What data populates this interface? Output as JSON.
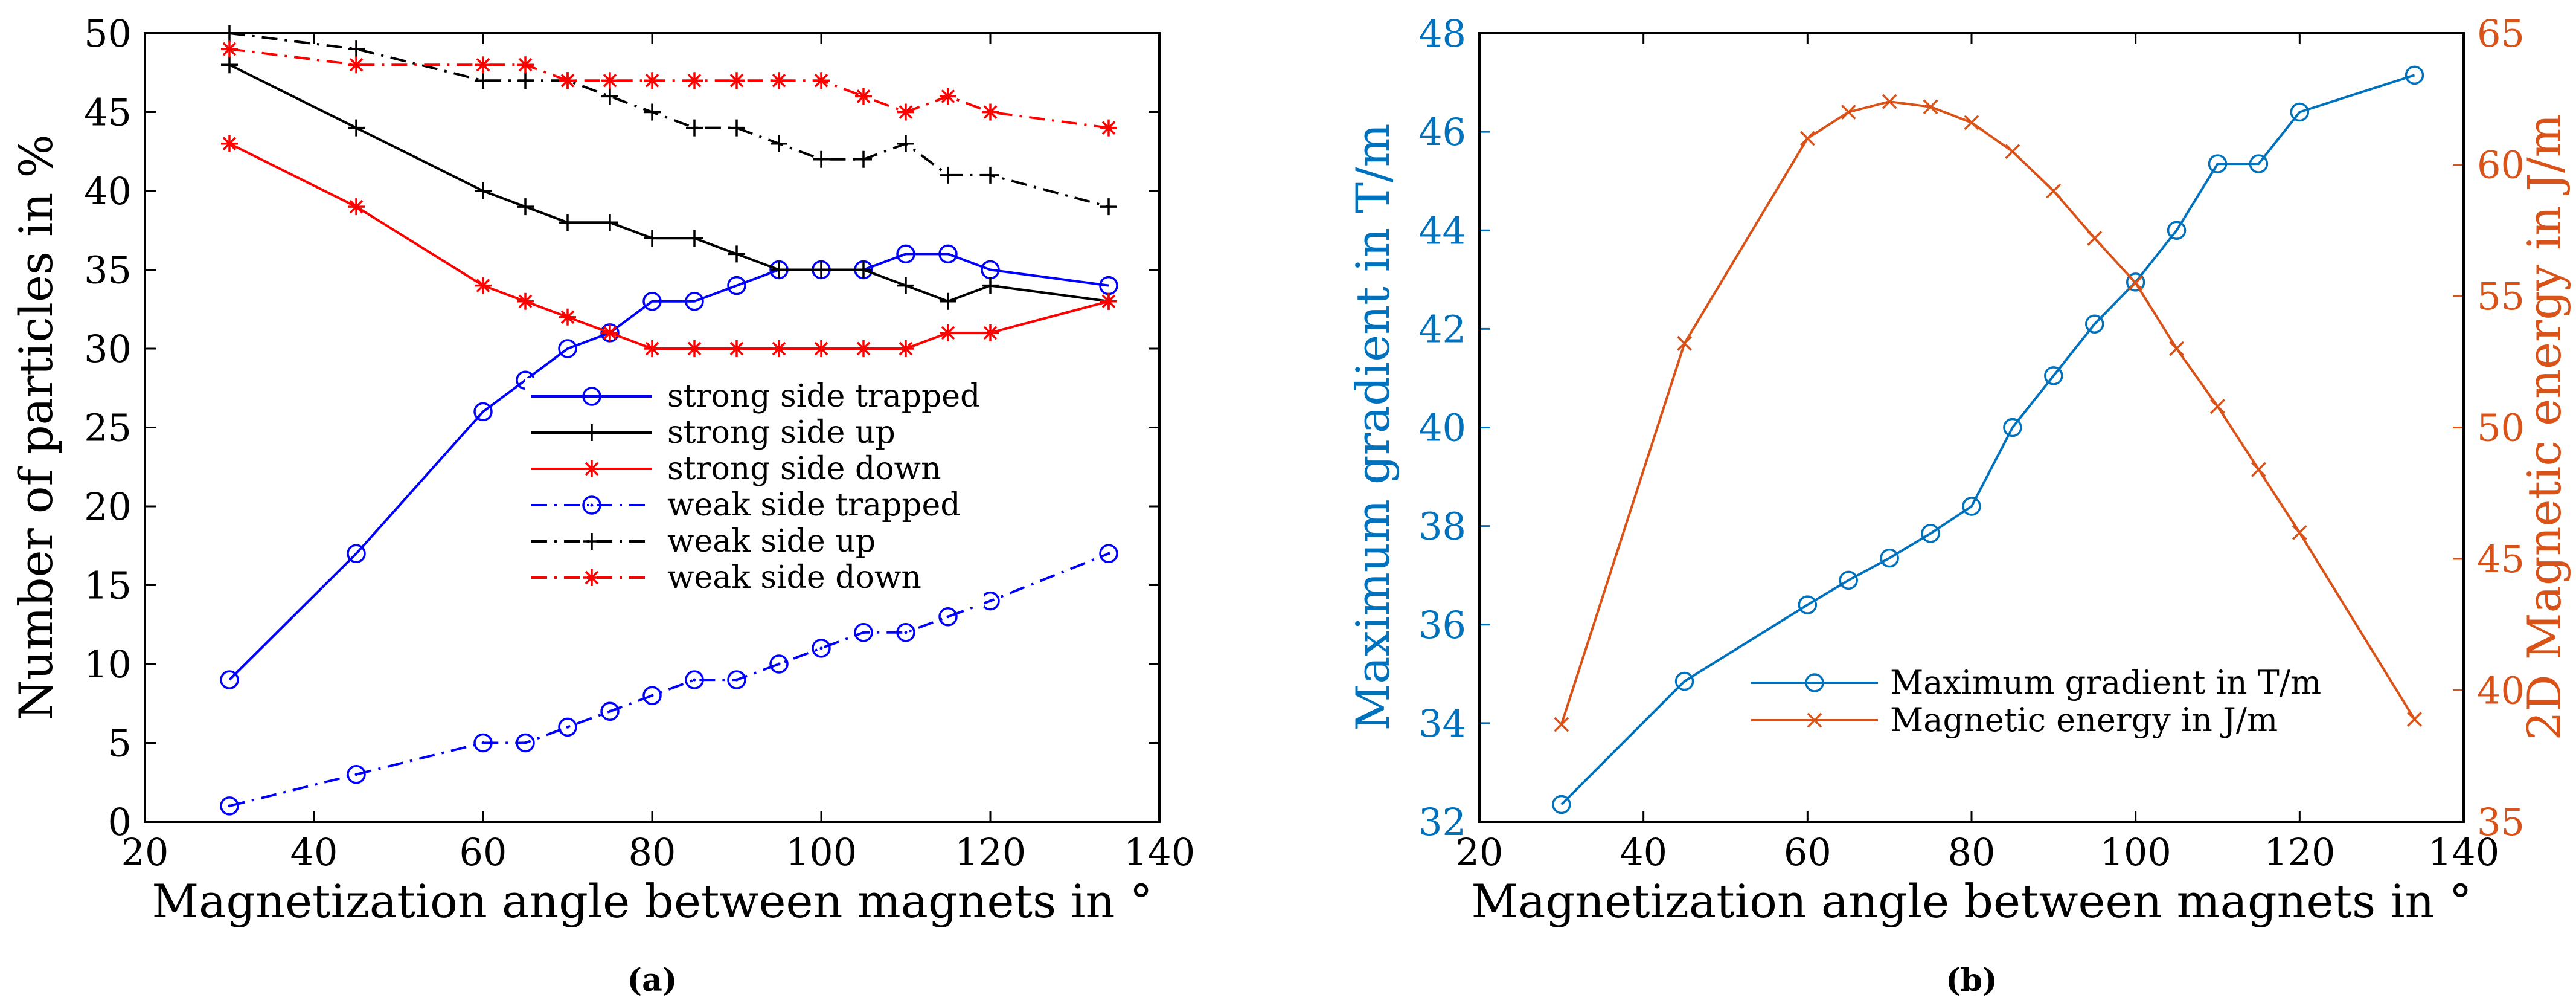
{
  "chart_data": [
    {
      "type": "line",
      "panel_label": "(a)",
      "title": "",
      "xlabel": "Magnetization angle between magnets in °",
      "ylabel": "Number of particles in %",
      "xlim": [
        20,
        140
      ],
      "ylim": [
        0,
        50
      ],
      "xticks": [
        20,
        40,
        60,
        80,
        100,
        120,
        140
      ],
      "yticks": [
        0,
        5,
        10,
        15,
        20,
        25,
        30,
        35,
        40,
        45,
        50
      ],
      "legend_position": "center-right",
      "series": [
        {
          "name": "strong side trapped",
          "color": "#0000ff",
          "linestyle": "solid",
          "marker": "circle",
          "x": [
            30,
            45,
            60,
            65,
            70,
            75,
            80,
            85,
            90,
            95,
            100,
            105,
            110,
            115,
            120,
            134
          ],
          "y": [
            9,
            17,
            26,
            28,
            30,
            31,
            33,
            33,
            34,
            35,
            35,
            35,
            36,
            36,
            35,
            34
          ]
        },
        {
          "name": "strong side up",
          "color": "#000000",
          "linestyle": "solid",
          "marker": "plus",
          "x": [
            30,
            45,
            60,
            65,
            70,
            75,
            80,
            85,
            90,
            95,
            100,
            105,
            110,
            115,
            120,
            134
          ],
          "y": [
            48,
            44,
            40,
            39,
            38,
            38,
            37,
            37,
            36,
            35,
            35,
            35,
            34,
            33,
            34,
            33
          ]
        },
        {
          "name": "strong side down",
          "color": "#ff0000",
          "linestyle": "solid",
          "marker": "star",
          "x": [
            30,
            45,
            60,
            65,
            70,
            75,
            80,
            85,
            90,
            95,
            100,
            105,
            110,
            115,
            120,
            134
          ],
          "y": [
            43,
            39,
            34,
            33,
            32,
            31,
            30,
            30,
            30,
            30,
            30,
            30,
            30,
            31,
            31,
            33
          ]
        },
        {
          "name": "weak side trapped",
          "color": "#0000ff",
          "linestyle": "dashdot",
          "marker": "circle-dot",
          "x": [
            30,
            45,
            60,
            65,
            70,
            75,
            80,
            85,
            90,
            95,
            100,
            105,
            110,
            115,
            120,
            134
          ],
          "y": [
            1,
            3,
            5,
            5,
            6,
            7,
            8,
            9,
            9,
            10,
            11,
            12,
            12,
            13,
            14,
            17
          ]
        },
        {
          "name": "weak side up",
          "color": "#000000",
          "linestyle": "dashdot",
          "marker": "plus",
          "x": [
            30,
            45,
            60,
            65,
            70,
            75,
            80,
            85,
            90,
            95,
            100,
            105,
            110,
            115,
            120,
            134
          ],
          "y": [
            50,
            49,
            47,
            47,
            47,
            46,
            45,
            44,
            44,
            43,
            42,
            42,
            43,
            41,
            41,
            39
          ]
        },
        {
          "name": "weak side down",
          "color": "#ff0000",
          "linestyle": "dashdot",
          "marker": "star",
          "x": [
            30,
            45,
            60,
            65,
            70,
            75,
            80,
            85,
            90,
            95,
            100,
            105,
            110,
            115,
            120,
            134
          ],
          "y": [
            49,
            48,
            48,
            48,
            47,
            47,
            47,
            47,
            47,
            47,
            47,
            46,
            45,
            46,
            45,
            44
          ]
        }
      ]
    },
    {
      "type": "line",
      "panel_label": "(b)",
      "title": "",
      "xlabel": "Magnetization angle between magnets in °",
      "ylabel_left": "Maximum gradient in T/m",
      "ylabel_right": "2D Magnetic energy in J/m",
      "left_axis_color": "#0072bd",
      "right_axis_color": "#d95319",
      "xlim": [
        20,
        140
      ],
      "ylim_left": [
        32,
        48
      ],
      "ylim_right": [
        35,
        65
      ],
      "xticks": [
        20,
        40,
        60,
        80,
        100,
        120,
        140
      ],
      "yticks_left": [
        32,
        34,
        36,
        38,
        40,
        42,
        44,
        46,
        48
      ],
      "yticks_right": [
        35,
        40,
        45,
        50,
        55,
        60,
        65
      ],
      "legend_position": "lower-center",
      "series": [
        {
          "name": "Maximum gradient in T/m",
          "axis": "left",
          "color": "#0072bd",
          "linestyle": "solid",
          "marker": "circle",
          "x": [
            30,
            45,
            60,
            65,
            70,
            75,
            80,
            85,
            90,
            95,
            100,
            105,
            110,
            115,
            120,
            134
          ],
          "y": [
            32.35,
            34.85,
            36.4,
            36.9,
            37.35,
            37.85,
            38.4,
            40.0,
            41.05,
            42.1,
            42.95,
            44.0,
            45.35,
            45.35,
            46.4,
            47.15
          ]
        },
        {
          "name": "Magnetic energy in J/m",
          "axis": "right",
          "color": "#d95319",
          "linestyle": "solid",
          "marker": "x",
          "x": [
            30,
            45,
            60,
            65,
            70,
            75,
            80,
            85,
            90,
            95,
            100,
            105,
            110,
            115,
            120,
            134
          ],
          "y": [
            38.7,
            53.2,
            61.0,
            62.0,
            62.4,
            62.2,
            61.6,
            60.5,
            59.0,
            57.2,
            55.5,
            53.0,
            50.8,
            48.4,
            46.0,
            38.9
          ]
        }
      ]
    }
  ]
}
